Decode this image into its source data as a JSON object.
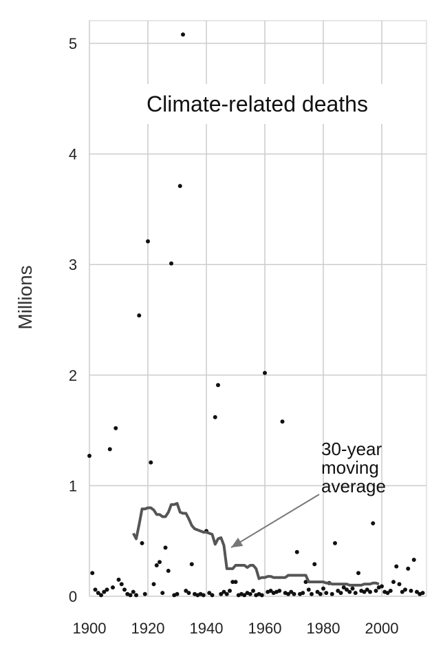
{
  "chart_data": {
    "type": "scatter",
    "title": "Climate-related deaths",
    "xlabel": "",
    "ylabel": "Millions",
    "xlim": [
      1900,
      2015
    ],
    "ylim": [
      0,
      5.2
    ],
    "grid": true,
    "xticks": [
      "1900",
      "1920",
      "1940",
      "1960",
      "1980",
      "2000"
    ],
    "yticks": [
      "0",
      "1",
      "2",
      "3",
      "4",
      "5"
    ],
    "annotation": {
      "lines": [
        "30-year",
        "moving",
        "average"
      ],
      "target": {
        "x": 1948,
        "y": 0.46
      }
    },
    "series": [
      {
        "name": "",
        "kind": "points",
        "points": [
          [
            1900,
            1.27
          ],
          [
            1901,
            0.21
          ],
          [
            1902,
            0.06
          ],
          [
            1903,
            0.03
          ],
          [
            1904,
            0.01
          ],
          [
            1905,
            0.04
          ],
          [
            1906,
            0.06
          ],
          [
            1907,
            1.33
          ],
          [
            1908,
            0.08
          ],
          [
            1909,
            1.52
          ],
          [
            1910,
            0.15
          ],
          [
            1911,
            0.11
          ],
          [
            1912,
            0.06
          ],
          [
            1913,
            0.02
          ],
          [
            1914,
            0.01
          ],
          [
            1915,
            0.04
          ],
          [
            1916,
            0.01
          ],
          [
            1917,
            2.54
          ],
          [
            1918,
            0.48
          ],
          [
            1919,
            0.02
          ],
          [
            1920,
            3.21
          ],
          [
            1921,
            1.21
          ],
          [
            1922,
            0.11
          ],
          [
            1923,
            0.28
          ],
          [
            1924,
            0.31
          ],
          [
            1925,
            0.03
          ],
          [
            1926,
            0.44
          ],
          [
            1927,
            0.23
          ],
          [
            1928,
            3.01
          ],
          [
            1929,
            0.01
          ],
          [
            1930,
            0.02
          ],
          [
            1931,
            3.71
          ],
          [
            1932,
            5.08
          ],
          [
            1933,
            0.05
          ],
          [
            1934,
            0.03
          ],
          [
            1935,
            0.29
          ],
          [
            1936,
            0.02
          ],
          [
            1937,
            0.01
          ],
          [
            1938,
            0.02
          ],
          [
            1939,
            0.01
          ],
          [
            1940,
            0.59
          ],
          [
            1941,
            0.03
          ],
          [
            1942,
            0.01
          ],
          [
            1943,
            1.62
          ],
          [
            1944,
            1.91
          ],
          [
            1945,
            0.02
          ],
          [
            1946,
            0.04
          ],
          [
            1947,
            0.02
          ],
          [
            1948,
            0.05
          ],
          [
            1949,
            0.13
          ],
          [
            1950,
            0.13
          ],
          [
            1951,
            0.01
          ],
          [
            1952,
            0.02
          ],
          [
            1953,
            0.01
          ],
          [
            1954,
            0.03
          ],
          [
            1955,
            0.02
          ],
          [
            1956,
            0.05
          ],
          [
            1957,
            0.01
          ],
          [
            1958,
            0.02
          ],
          [
            1959,
            0.01
          ],
          [
            1960,
            2.02
          ],
          [
            1961,
            0.04
          ],
          [
            1962,
            0.05
          ],
          [
            1963,
            0.03
          ],
          [
            1964,
            0.04
          ],
          [
            1965,
            0.05
          ],
          [
            1966,
            1.58
          ],
          [
            1967,
            0.03
          ],
          [
            1968,
            0.02
          ],
          [
            1969,
            0.04
          ],
          [
            1970,
            0.02
          ],
          [
            1971,
            0.4
          ],
          [
            1972,
            0.02
          ],
          [
            1973,
            0.03
          ],
          [
            1974,
            0.13
          ],
          [
            1975,
            0.06
          ],
          [
            1976,
            0.02
          ],
          [
            1977,
            0.29
          ],
          [
            1978,
            0.04
          ],
          [
            1979,
            0.02
          ],
          [
            1980,
            0.07
          ],
          [
            1981,
            0.03
          ],
          [
            1982,
            0.12
          ],
          [
            1983,
            0.02
          ],
          [
            1984,
            0.48
          ],
          [
            1985,
            0.05
          ],
          [
            1986,
            0.03
          ],
          [
            1987,
            0.08
          ],
          [
            1988,
            0.06
          ],
          [
            1989,
            0.04
          ],
          [
            1990,
            0.07
          ],
          [
            1991,
            0.03
          ],
          [
            1992,
            0.21
          ],
          [
            1993,
            0.05
          ],
          [
            1994,
            0.04
          ],
          [
            1995,
            0.06
          ],
          [
            1996,
            0.04
          ],
          [
            1997,
            0.66
          ],
          [
            1998,
            0.05
          ],
          [
            1999,
            0.08
          ],
          [
            2000,
            0.09
          ],
          [
            2001,
            0.04
          ],
          [
            2002,
            0.03
          ],
          [
            2003,
            0.05
          ],
          [
            2004,
            0.13
          ],
          [
            2005,
            0.27
          ],
          [
            2006,
            0.11
          ],
          [
            2007,
            0.04
          ],
          [
            2008,
            0.06
          ],
          [
            2009,
            0.25
          ],
          [
            2010,
            0.05
          ],
          [
            2011,
            0.33
          ],
          [
            2012,
            0.04
          ],
          [
            2013,
            0.02
          ],
          [
            2014,
            0.03
          ]
        ]
      },
      {
        "name": "30-year moving average",
        "kind": "line",
        "color": "#555555",
        "points": [
          [
            1915,
            0.57
          ],
          [
            1916,
            0.52
          ],
          [
            1917,
            0.65
          ],
          [
            1918,
            0.79
          ],
          [
            1919,
            0.79
          ],
          [
            1920,
            0.8
          ],
          [
            1921,
            0.8
          ],
          [
            1922,
            0.78
          ],
          [
            1923,
            0.74
          ],
          [
            1924,
            0.74
          ],
          [
            1925,
            0.72
          ],
          [
            1926,
            0.72
          ],
          [
            1927,
            0.76
          ],
          [
            1928,
            0.83
          ],
          [
            1929,
            0.83
          ],
          [
            1930,
            0.84
          ],
          [
            1931,
            0.76
          ],
          [
            1932,
            0.75
          ],
          [
            1933,
            0.75
          ],
          [
            1934,
            0.7
          ],
          [
            1935,
            0.64
          ],
          [
            1936,
            0.61
          ],
          [
            1937,
            0.6
          ],
          [
            1938,
            0.59
          ],
          [
            1939,
            0.58
          ],
          [
            1940,
            0.58
          ],
          [
            1941,
            0.57
          ],
          [
            1942,
            0.56
          ],
          [
            1943,
            0.47
          ],
          [
            1944,
            0.52
          ],
          [
            1945,
            0.53
          ],
          [
            1946,
            0.46
          ],
          [
            1947,
            0.25
          ],
          [
            1948,
            0.25
          ],
          [
            1949,
            0.25
          ],
          [
            1950,
            0.28
          ],
          [
            1951,
            0.28
          ],
          [
            1952,
            0.28
          ],
          [
            1953,
            0.28
          ],
          [
            1954,
            0.26
          ],
          [
            1955,
            0.28
          ],
          [
            1956,
            0.28
          ],
          [
            1957,
            0.25
          ],
          [
            1958,
            0.16
          ],
          [
            1959,
            0.17
          ],
          [
            1960,
            0.17
          ],
          [
            1961,
            0.18
          ],
          [
            1962,
            0.18
          ],
          [
            1963,
            0.17
          ],
          [
            1964,
            0.17
          ],
          [
            1965,
            0.17
          ],
          [
            1966,
            0.17
          ],
          [
            1967,
            0.17
          ],
          [
            1968,
            0.19
          ],
          [
            1969,
            0.19
          ],
          [
            1970,
            0.19
          ],
          [
            1971,
            0.19
          ],
          [
            1972,
            0.19
          ],
          [
            1973,
            0.19
          ],
          [
            1974,
            0.19
          ],
          [
            1975,
            0.13
          ],
          [
            1976,
            0.13
          ],
          [
            1977,
            0.13
          ],
          [
            1978,
            0.13
          ],
          [
            1979,
            0.13
          ],
          [
            1980,
            0.13
          ],
          [
            1981,
            0.12
          ],
          [
            1982,
            0.12
          ],
          [
            1983,
            0.11
          ],
          [
            1984,
            0.11
          ],
          [
            1985,
            0.11
          ],
          [
            1986,
            0.11
          ],
          [
            1987,
            0.11
          ],
          [
            1988,
            0.11
          ],
          [
            1989,
            0.1
          ],
          [
            1990,
            0.1
          ],
          [
            1991,
            0.1
          ],
          [
            1992,
            0.1
          ],
          [
            1993,
            0.1
          ],
          [
            1994,
            0.11
          ],
          [
            1995,
            0.11
          ],
          [
            1996,
            0.11
          ],
          [
            1997,
            0.12
          ],
          [
            1998,
            0.12
          ],
          [
            1999,
            0.11
          ]
        ]
      }
    ]
  }
}
